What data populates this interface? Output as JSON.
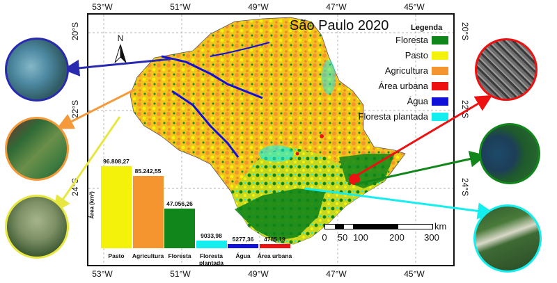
{
  "map": {
    "title": "São Paulo 2020",
    "north_label": "N",
    "legend": {
      "title": "Legenda",
      "items": [
        {
          "label": "Floresta",
          "color": "#11861a"
        },
        {
          "label": "Pasto",
          "color": "#f4f20a"
        },
        {
          "label": "Agricultura",
          "color": "#f5952f"
        },
        {
          "label": "Área urbana",
          "color": "#ee1111"
        },
        {
          "label": "Água",
          "color": "#1010d8"
        },
        {
          "label": "Floresta plantada",
          "color": "#14eeee"
        }
      ]
    },
    "coordinates": {
      "longitudes": [
        "53°W",
        "51°W",
        "49°W",
        "47°W",
        "45°W"
      ],
      "latitudes": [
        "20°S",
        "22°S",
        "24°S"
      ]
    },
    "scale": {
      "ticks": [
        "0",
        "50",
        "100",
        "200",
        "300"
      ],
      "unit": "km"
    }
  },
  "chart_data": {
    "type": "bar",
    "categories": [
      "Pasto",
      "Agricultura",
      "Floresta",
      "Floresta plantada",
      "Água",
      "Área urbana"
    ],
    "values": [
      96808.27,
      85242.55,
      47056.26,
      9033.98,
      5277.36,
      4785.19
    ],
    "value_labels": [
      "96.808,27",
      "85.242,55",
      "47.056,26",
      "9033,98",
      "5277,36",
      "4785,19"
    ],
    "colors": [
      "#f4f20a",
      "#f5952f",
      "#11861a",
      "#14eeee",
      "#1010d8",
      "#ee1111"
    ],
    "ylabel": "Área (km²)"
  },
  "insets": [
    {
      "name": "water-inset",
      "border": "#2a2ab0",
      "arrow": "#2a2ab0",
      "icon": "satellite-water"
    },
    {
      "name": "agriculture-inset",
      "border": "#f59a3a",
      "arrow": "#f59a3a",
      "icon": "satellite-agriculture"
    },
    {
      "name": "pasture-inset",
      "border": "#e8e640",
      "arrow": "#e8e640",
      "icon": "satellite-pasture"
    },
    {
      "name": "urban-inset",
      "border": "#ee1111",
      "arrow": "#ee1111",
      "icon": "satellite-urban"
    },
    {
      "name": "forest-inset",
      "border": "#11861a",
      "arrow": "#11861a",
      "icon": "satellite-forest"
    },
    {
      "name": "planted-forest-inset",
      "border": "#14eeee",
      "arrow": "#14eeee",
      "icon": "satellite-planted-forest"
    }
  ]
}
